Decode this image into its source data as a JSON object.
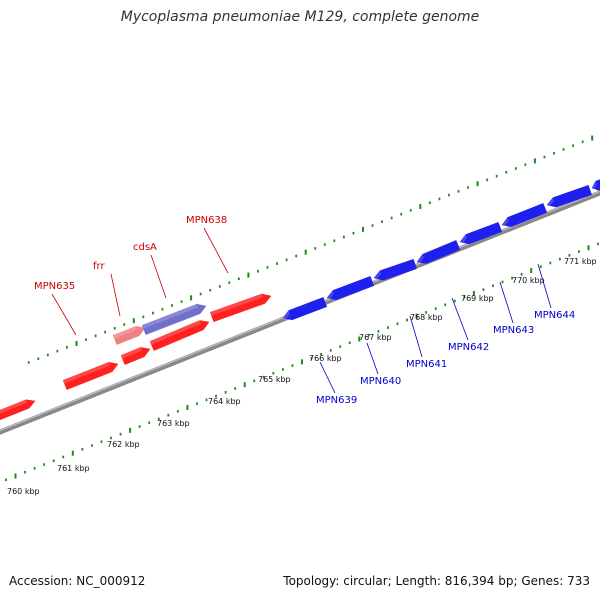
{
  "title": "Mycoplasma pneumoniae M129, complete genome",
  "footer": {
    "accession": "Accession: NC_000912",
    "summary": "Topology: circular; Length: 816,394 bp; Genes: 733"
  },
  "colors": {
    "backbone": "#888888",
    "forward_gene": "#ff2020",
    "reverse_gene": "#2020ee",
    "highlight": "#7070cc",
    "highlight_light": "#f08080",
    "tick": "#1a8a1a",
    "forward_label": "#cc0000",
    "reverse_label": "#0000cc"
  },
  "scale_ticks": [
    {
      "label": "760 kbp"
    },
    {
      "label": "761 kbp"
    },
    {
      "label": "762 kbp"
    },
    {
      "label": "763 kbp"
    },
    {
      "label": "764 kbp"
    },
    {
      "label": "765 kbp"
    },
    {
      "label": "766 kbp"
    },
    {
      "label": "767 kbp"
    },
    {
      "label": "768 kbp"
    },
    {
      "label": "769 kbp"
    },
    {
      "label": "770 kbp"
    },
    {
      "label": "771 kbp"
    }
  ],
  "forward_gene_labels": [
    "MPN635",
    "frr",
    "cdsA",
    "MPN638"
  ],
  "reverse_gene_labels": [
    "MPN639",
    "MPN640",
    "MPN641",
    "MPN642",
    "MPN643",
    "MPN644"
  ]
}
